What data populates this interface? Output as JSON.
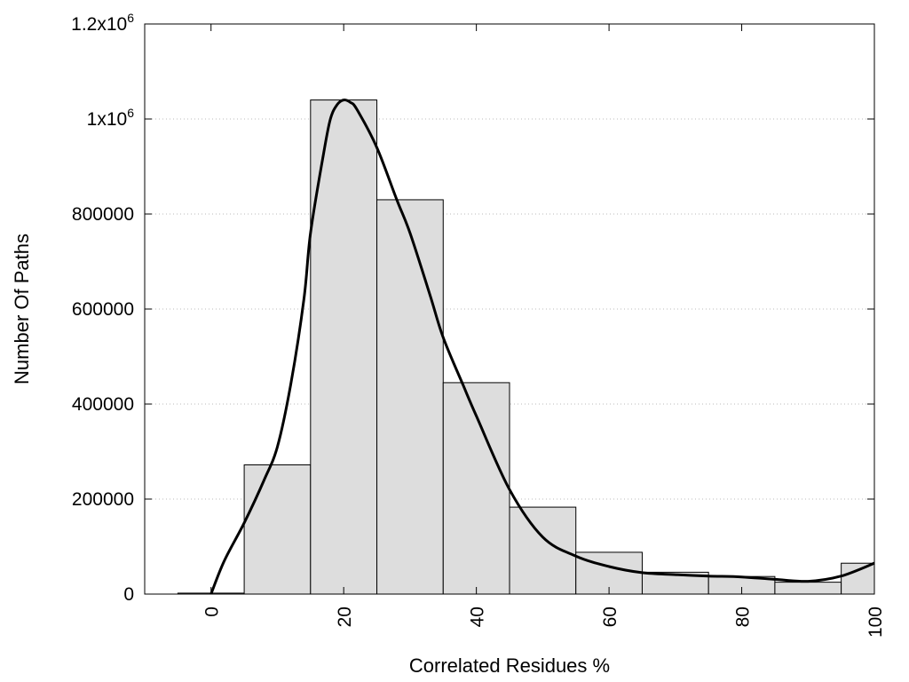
{
  "chart_data": {
    "type": "bar",
    "title": "",
    "xlabel": "Correlated Residues %",
    "ylabel": "Number Of Paths",
    "xlim": [
      -10,
      100
    ],
    "ylim": [
      0,
      1200000
    ],
    "grid": true,
    "x_ticks": [
      0,
      20,
      40,
      60,
      80,
      100
    ],
    "x_tick_labels": [
      "0",
      "20",
      "40",
      "60",
      "80",
      "100"
    ],
    "y_ticks": [
      0,
      200000,
      400000,
      600000,
      800000,
      1000000,
      1200000
    ],
    "y_tick_labels": [
      {
        "base": "0",
        "exp": ""
      },
      {
        "base": "200000",
        "exp": ""
      },
      {
        "base": "400000",
        "exp": ""
      },
      {
        "base": "600000",
        "exp": ""
      },
      {
        "base": "800000",
        "exp": ""
      },
      {
        "base": "1x10",
        "exp": "6"
      },
      {
        "base": "1.2x10",
        "exp": "6"
      }
    ],
    "bins": [
      {
        "x0": -5,
        "x1": 5,
        "value": 2000
      },
      {
        "x0": 5,
        "x1": 15,
        "value": 272000
      },
      {
        "x0": 15,
        "x1": 25,
        "value": 1040000
      },
      {
        "x0": 25,
        "x1": 35,
        "value": 830000
      },
      {
        "x0": 35,
        "x1": 45,
        "value": 445000
      },
      {
        "x0": 45,
        "x1": 55,
        "value": 183000
      },
      {
        "x0": 55,
        "x1": 65,
        "value": 88000
      },
      {
        "x0": 65,
        "x1": 75,
        "value": 46000
      },
      {
        "x0": 75,
        "x1": 85,
        "value": 37000
      },
      {
        "x0": 85,
        "x1": 95,
        "value": 25000
      },
      {
        "x0": 95,
        "x1": 105,
        "value": 65000
      }
    ],
    "curve": {
      "x": [
        0,
        2,
        5,
        8,
        10,
        12,
        14,
        15,
        17,
        18,
        19,
        20,
        21,
        22,
        25,
        28,
        30,
        33,
        35,
        38,
        40,
        45,
        50,
        55,
        60,
        65,
        70,
        75,
        80,
        85,
        90,
        95,
        100
      ],
      "y": [
        0,
        70000,
        150000,
        240000,
        310000,
        440000,
        620000,
        760000,
        930000,
        1000000,
        1030000,
        1040000,
        1035000,
        1020000,
        940000,
        830000,
        760000,
        630000,
        540000,
        440000,
        375000,
        220000,
        120000,
        80000,
        58000,
        45000,
        41000,
        38000,
        36000,
        31000,
        27000,
        38000,
        65000
      ]
    },
    "colors": {
      "bar_fill": "#dddddd",
      "bar_stroke": "#000000",
      "curve": "#000000",
      "grid": "#bbbbbb"
    }
  }
}
